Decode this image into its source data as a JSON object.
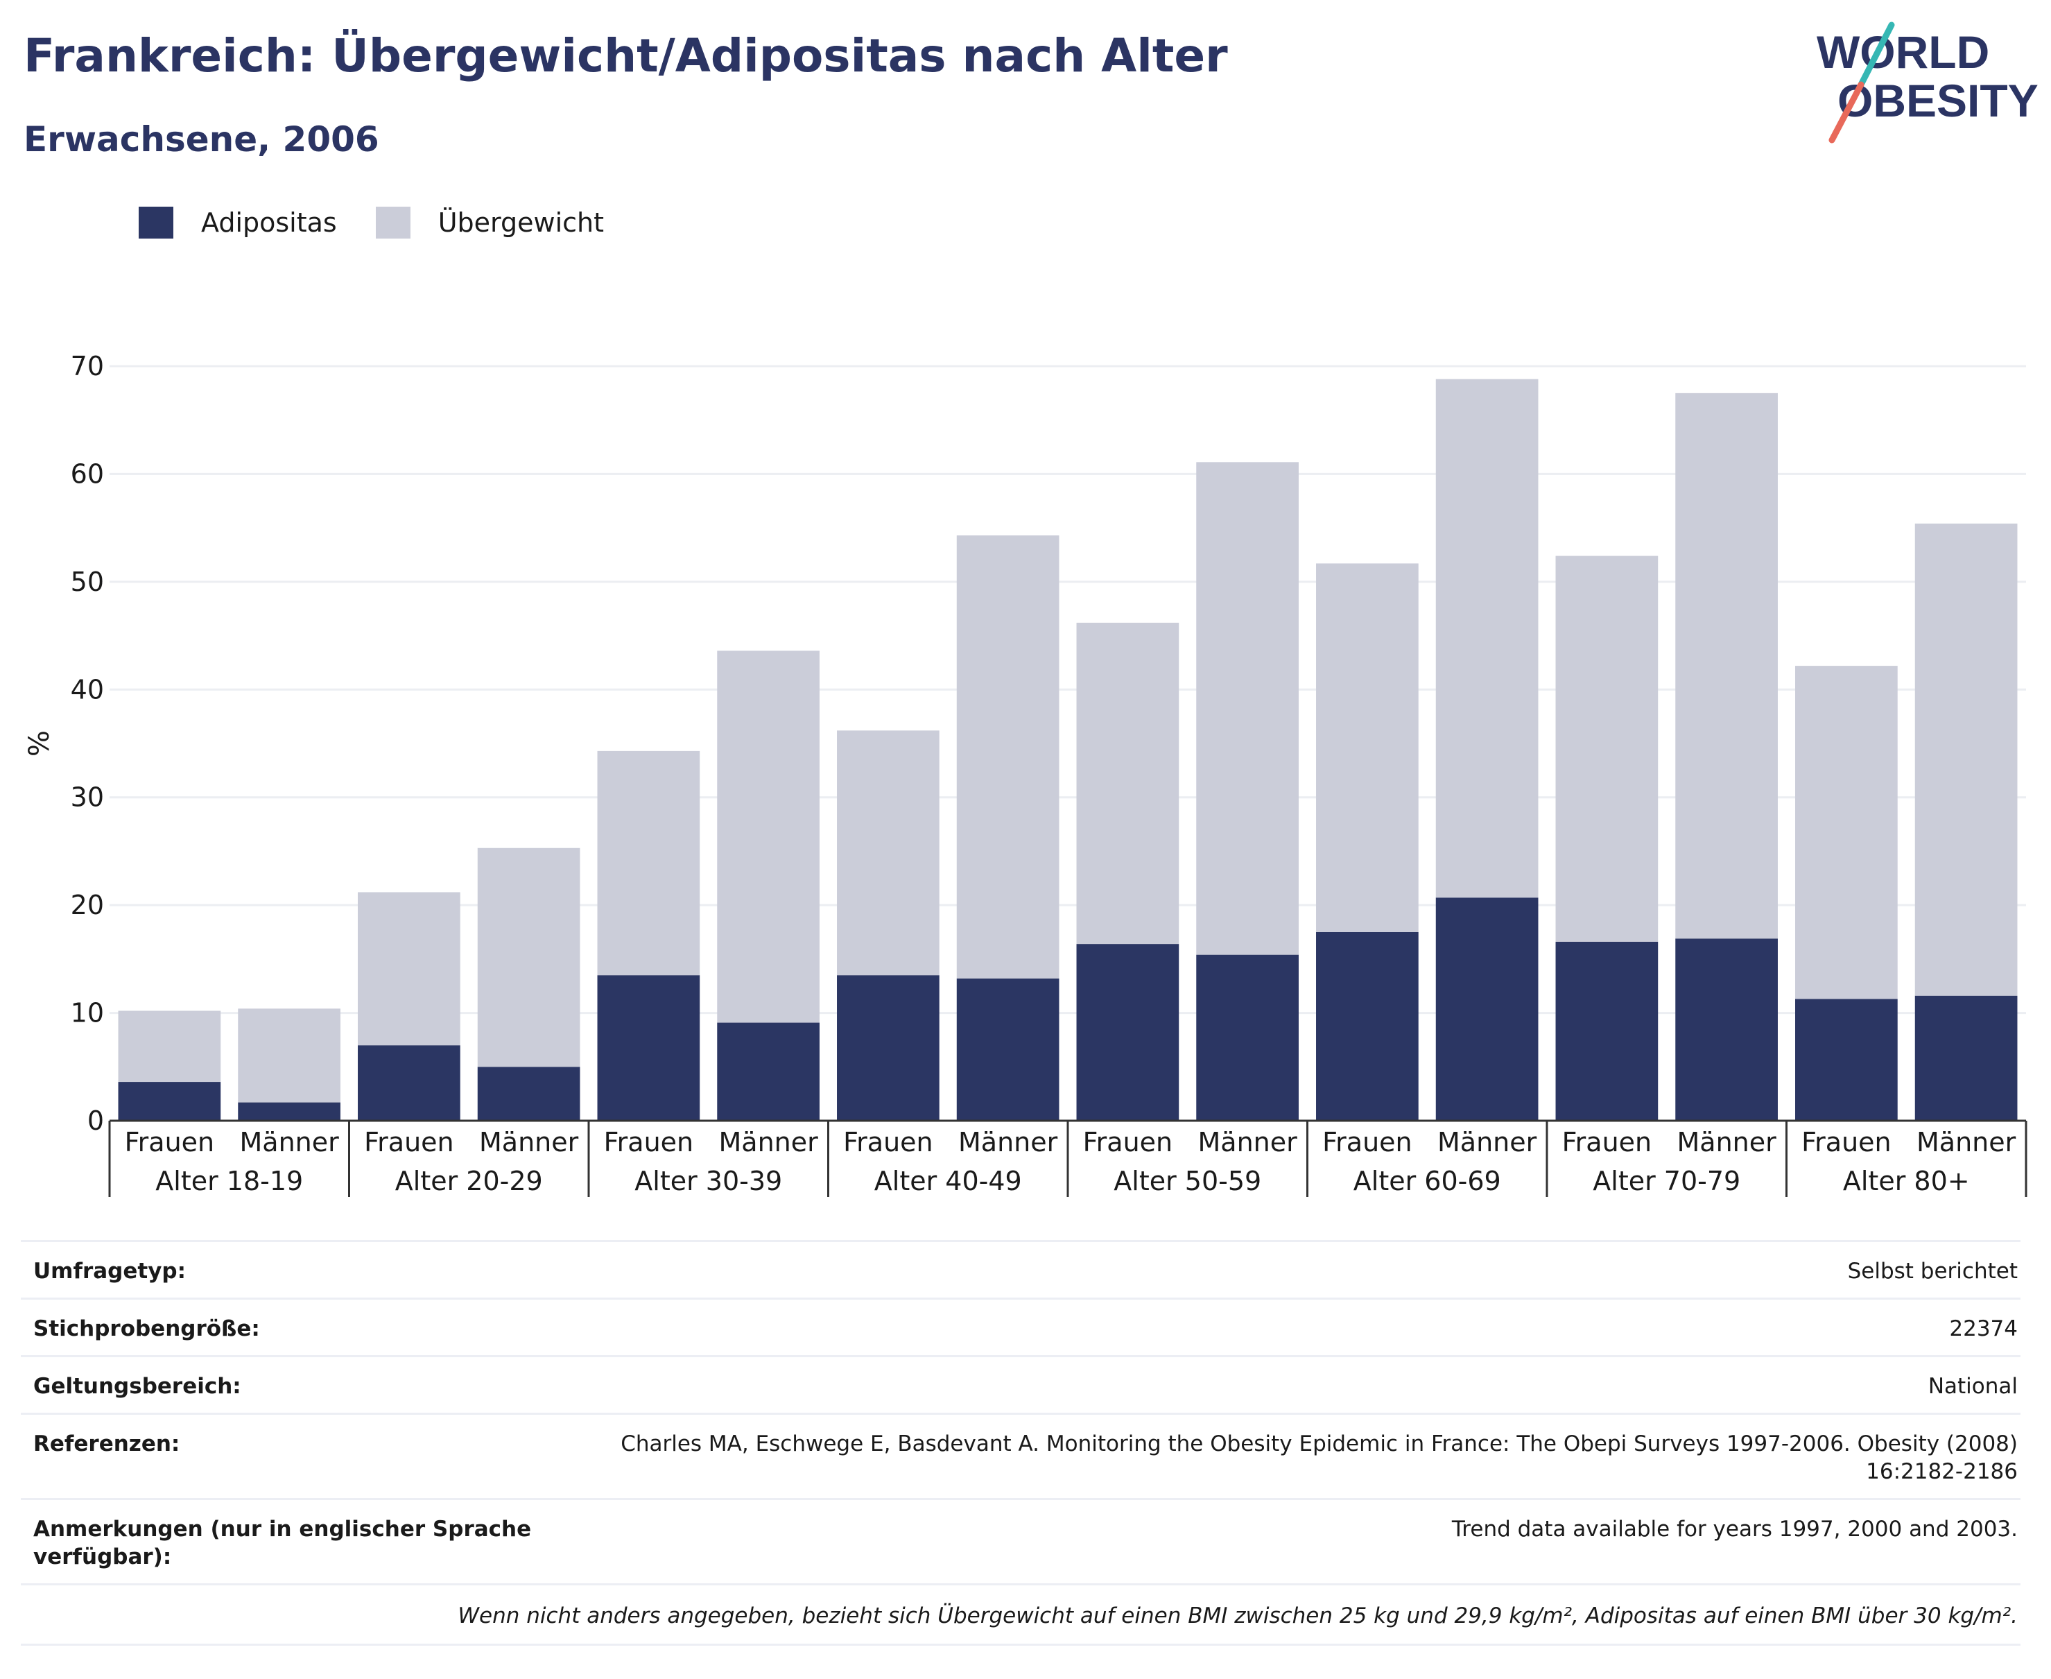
{
  "title": "Frankreich: Übergewicht/Adipositas nach Alter",
  "subtitle": "Erwachsene, 2006",
  "logo": {
    "line1": "WORLD",
    "line2": "OBESITY"
  },
  "legend": {
    "obesity": "Adipositas",
    "overweight": "Übergewicht"
  },
  "colors": {
    "obesity": "#2b3663",
    "overweight": "#cbcdd9",
    "title": "#2b3463",
    "accent_teal": "#36b7b4",
    "accent_coral": "#e8695a"
  },
  "chart_data": {
    "type": "bar",
    "stacked": true,
    "ylabel": "%",
    "ylim": [
      0,
      70
    ],
    "yticks": [
      0,
      10,
      20,
      30,
      40,
      50,
      60,
      70
    ],
    "grid": true,
    "legend_position": "top-left",
    "groups": [
      "Alter 18-19",
      "Alter 20-29",
      "Alter 30-39",
      "Alter 40-49",
      "Alter 50-59",
      "Alter 60-69",
      "Alter 70-79",
      "Alter 80+"
    ],
    "subcategories": [
      "Frauen",
      "Männer"
    ],
    "categories": [
      "Frauen",
      "Männer",
      "Frauen",
      "Männer",
      "Frauen",
      "Männer",
      "Frauen",
      "Männer",
      "Frauen",
      "Männer",
      "Frauen",
      "Männer",
      "Frauen",
      "Männer",
      "Frauen",
      "Männer"
    ],
    "series": [
      {
        "name": "Adipositas",
        "values": [
          3.6,
          1.7,
          7.0,
          5.0,
          13.5,
          9.1,
          13.5,
          13.2,
          16.4,
          15.4,
          17.5,
          20.7,
          16.6,
          16.9,
          11.3,
          11.6
        ]
      },
      {
        "name": "Übergewicht",
        "values": [
          6.6,
          8.7,
          14.2,
          20.3,
          20.8,
          34.5,
          22.7,
          41.1,
          29.8,
          45.7,
          34.2,
          48.1,
          35.8,
          50.6,
          30.9,
          43.8
        ]
      }
    ]
  },
  "info": {
    "rows": [
      {
        "key": "Umfragetyp:",
        "value": "Selbst berichtet"
      },
      {
        "key": "Stichprobengröße:",
        "value": "22374"
      },
      {
        "key": "Geltungsbereich:",
        "value": "National"
      },
      {
        "key": "Referenzen:",
        "value": "Charles MA, Eschwege E, Basdevant A. Monitoring the Obesity Epidemic in France: The Obepi Surveys 1997-2006. Obesity (2008) 16:2182-2186"
      },
      {
        "key": "Anmerkungen (nur in englischer Sprache verfügbar):",
        "value": "Trend data available for years 1997, 2000 and 2003."
      }
    ],
    "footnote": "Wenn nicht anders angegeben, bezieht sich Übergewicht auf einen BMI zwischen 25 kg und 29,9 kg/m², Adipositas auf einen BMI über 30 kg/m²."
  }
}
